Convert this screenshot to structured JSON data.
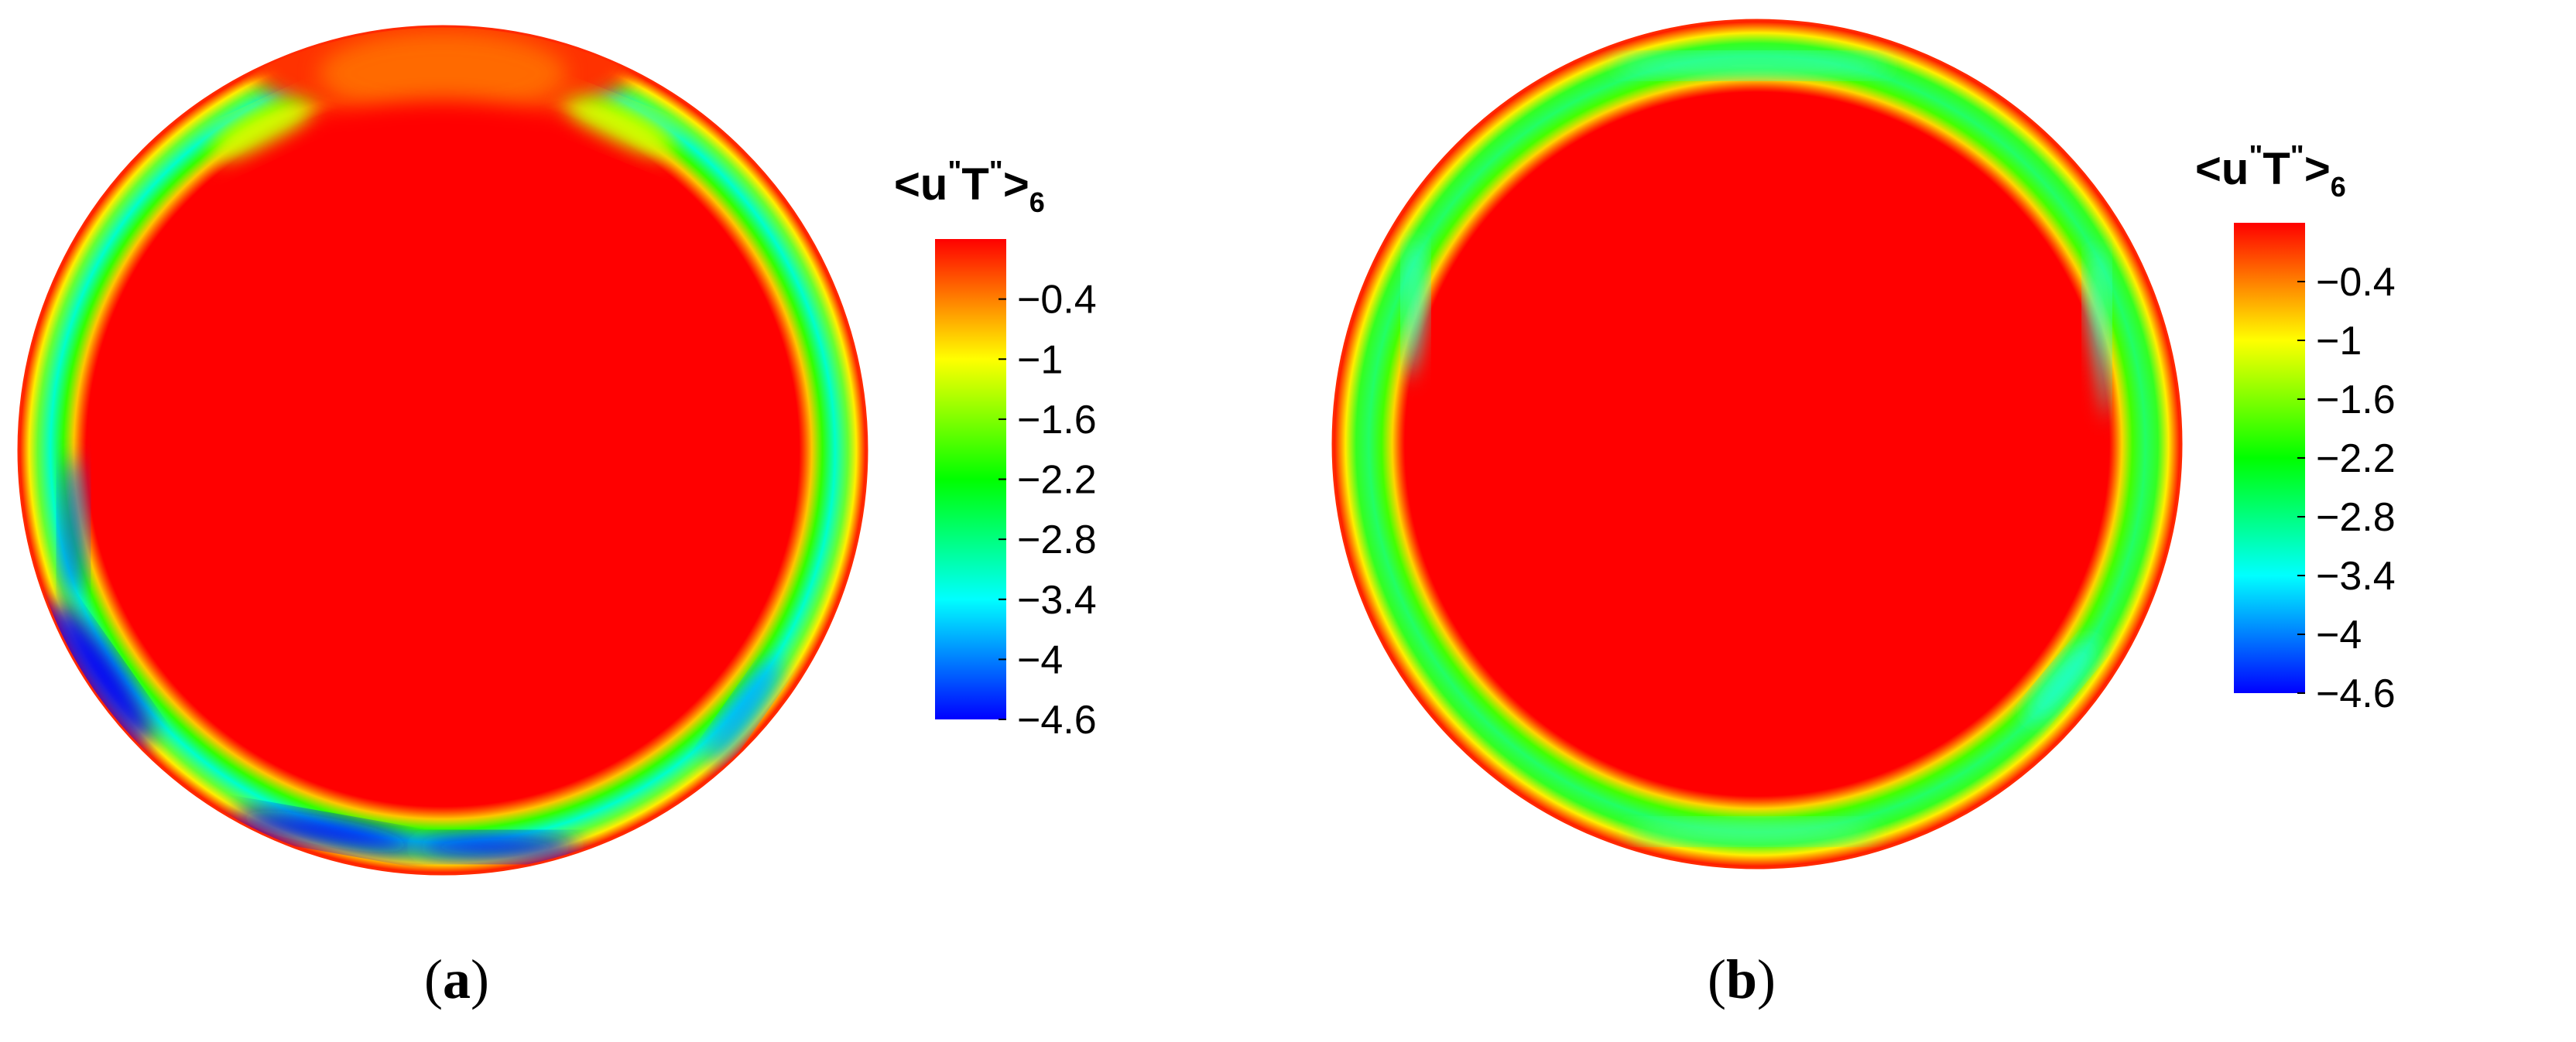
{
  "chart_data": [
    {
      "type": "heatmap",
      "subfigure_label": "a",
      "colorbar": {
        "title_base": "<u",
        "title_mid": "T",
        "title_close": ">",
        "title_sup": "\"",
        "title_sub": "6",
        "ticks": [
          "−0.4",
          "−1",
          "−1.6",
          "−2.2",
          "−2.8",
          "−3.4",
          "−4",
          "−4.6"
        ],
        "tick_values": [
          -0.4,
          -1,
          -1.6,
          -2.2,
          -2.8,
          -3.4,
          -4,
          -4.6
        ],
        "range": [
          -4.6,
          0.2
        ],
        "colormap": [
          "#0000ff",
          "#00ffff",
          "#00ff00",
          "#ffff00",
          "#ff0000"
        ]
      },
      "field": {
        "core_value": 0.2,
        "band_min_value": -3.0,
        "extrema_value": -4.4,
        "description_free": true
      }
    },
    {
      "type": "heatmap",
      "subfigure_label": "b",
      "colorbar": {
        "title_base": "<u",
        "title_mid": "T",
        "title_close": ">",
        "title_sup": "\"",
        "title_sub": "6",
        "ticks": [
          "−0.4",
          "−1",
          "−1.6",
          "−2.2",
          "−2.8",
          "−3.4",
          "−4",
          "−4.6"
        ],
        "tick_values": [
          -0.4,
          -1,
          -1.6,
          -2.2,
          -2.8,
          -3.4,
          -4,
          -4.6
        ],
        "range": [
          -4.6,
          0.2
        ],
        "colormap": [
          "#0000ff",
          "#00ffff",
          "#00ff00",
          "#ffff00",
          "#ff0000"
        ]
      },
      "field": {
        "core_value": 0.2,
        "band_min_value": -2.3,
        "extrema_value": -3.0
      }
    }
  ]
}
